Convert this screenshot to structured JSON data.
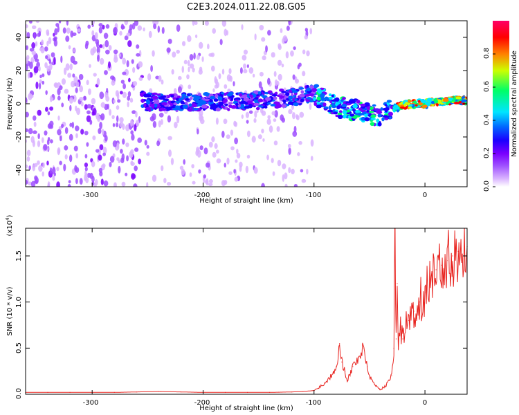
{
  "title": "C2E3.2024.011.22.08.G05",
  "chart_data": [
    {
      "type": "heatmap",
      "xlabel": "Height of straight line (km)",
      "ylabel": "Frequency (Hz)",
      "xlim": [
        -360,
        38
      ],
      "ylim": [
        -50,
        50
      ],
      "x_ticks": [
        -300,
        -200,
        -100,
        0
      ],
      "x_tick_labels": [
        "-300",
        "-200",
        "-100",
        "0"
      ],
      "y_ticks": [
        -40,
        -20,
        0,
        20,
        40
      ],
      "y_tick_labels": [
        "-40",
        "-20",
        "0",
        "20",
        "40"
      ],
      "colorbar": {
        "label": "Normalized spectral amplitude",
        "range": [
          0,
          1
        ],
        "ticks": [
          0.0,
          0.2,
          0.4,
          0.6,
          0.8
        ],
        "tick_labels": [
          "0.0",
          "0.2",
          "0.4",
          "0.6",
          "0.8"
        ],
        "colormap": [
          "#ffffff",
          "#d9b3ff",
          "#9d4dff",
          "#7a00ff",
          "#1a00ff",
          "#0066ff",
          "#00e5ff",
          "#00ff66",
          "#ccff00",
          "#ff8000",
          "#ff0000",
          "#ff0066"
        ]
      },
      "signal_track": {
        "x": [
          -250,
          -200,
          -150,
          -120,
          -100,
          -90,
          -80,
          -70,
          -60,
          -50,
          -40,
          -30,
          -20,
          -10,
          0,
          10,
          20,
          38
        ],
        "frequency_hz": [
          1,
          1,
          2,
          4,
          6,
          2,
          -2,
          -3,
          -4,
          -6,
          -8,
          -3,
          -1,
          0,
          0,
          1,
          2,
          2
        ]
      },
      "grid": false
    },
    {
      "type": "line",
      "xlabel": "Height of straight line (km)",
      "ylabel": "SNR (10 * v/v)",
      "y_multiplier": "(x10",
      "y_multiplier_exp": "4",
      "y_multiplier_close": ")",
      "xlim": [
        -360,
        38
      ],
      "ylim": [
        0,
        1.8
      ],
      "x_ticks": [
        -300,
        -200,
        -100,
        0
      ],
      "x_tick_labels": [
        "-300",
        "-200",
        "-100",
        "0"
      ],
      "y_ticks": [
        0.0,
        0.5,
        1.0,
        1.5
      ],
      "y_tick_labels": [
        "0.0",
        "0.5",
        "1.0",
        "1.5"
      ],
      "color": "#e8231f",
      "series": [
        {
          "x": [
            -360,
            -340,
            -320,
            -300,
            -280,
            -260,
            -240,
            -220,
            -200,
            -180,
            -160,
            -140,
            -120,
            -110,
            -100,
            -95,
            -90,
            -85,
            -80,
            -77,
            -75,
            -72,
            -70,
            -65,
            -60,
            -55,
            -52,
            -50,
            -45,
            -40,
            -35,
            -30,
            -28,
            -27,
            -26,
            -25,
            -24,
            -22,
            -20,
            -15,
            -10,
            -5,
            0,
            5,
            10,
            15,
            20,
            25,
            30,
            38
          ],
          "values": [
            0.02,
            0.02,
            0.02,
            0.02,
            0.02,
            0.025,
            0.03,
            0.025,
            0.02,
            0.02,
            0.02,
            0.02,
            0.025,
            0.03,
            0.04,
            0.08,
            0.12,
            0.2,
            0.3,
            0.55,
            0.35,
            0.25,
            0.15,
            0.3,
            0.4,
            0.5,
            0.3,
            0.2,
            0.1,
            0.05,
            0.1,
            0.2,
            0.5,
            1.8,
            0.6,
            1.2,
            0.5,
            0.7,
            0.6,
            0.8,
            0.9,
            1.0,
            1.1,
            1.25,
            1.35,
            1.4,
            1.45,
            1.5,
            1.55,
            1.6
          ]
        }
      ],
      "grid": false
    }
  ]
}
